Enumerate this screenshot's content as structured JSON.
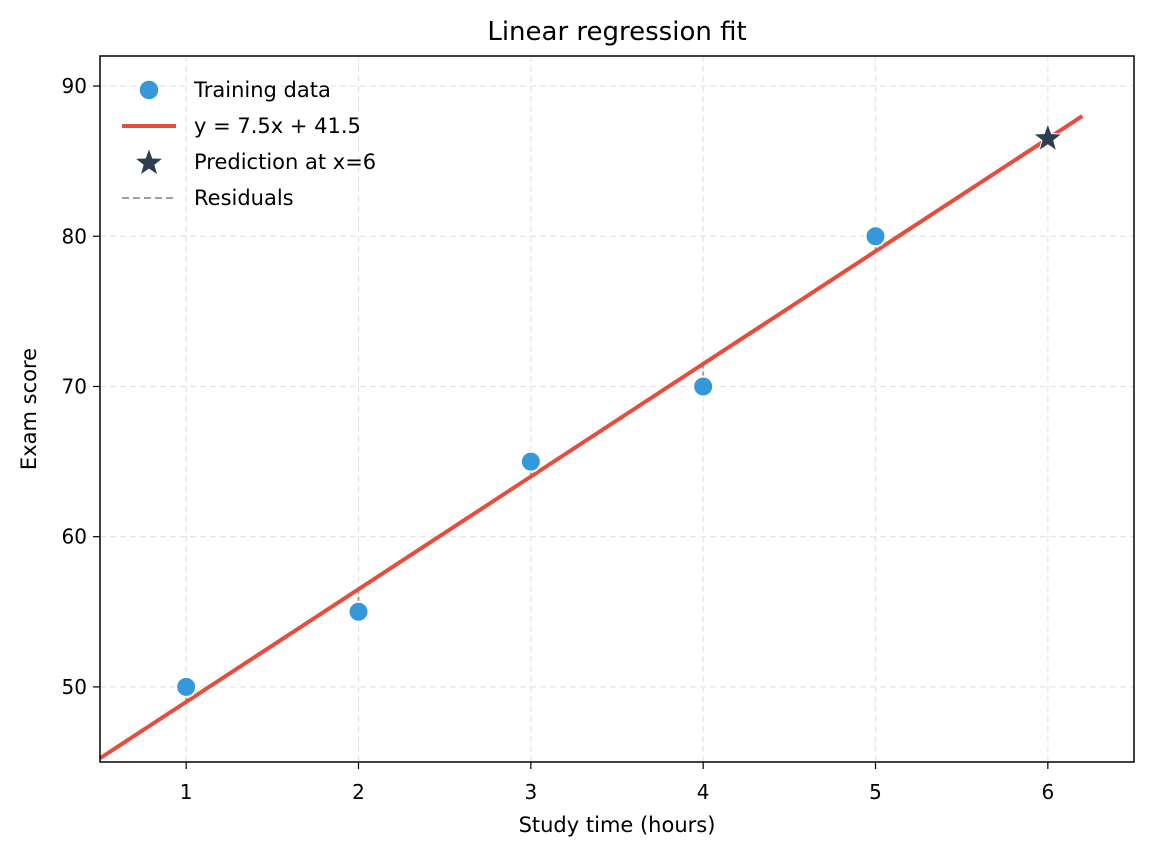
{
  "chart_data": {
    "type": "scatter",
    "title": "Linear regression fit",
    "xlabel": "Study time (hours)",
    "ylabel": "Exam score",
    "xlim": [
      0.5,
      6.5
    ],
    "ylim": [
      45,
      92
    ],
    "xticks": [
      1,
      2,
      3,
      4,
      5,
      6
    ],
    "yticks": [
      50,
      60,
      70,
      80,
      90
    ],
    "grid": true,
    "legend_position": "top-left",
    "series": [
      {
        "name": "Training data",
        "kind": "scatter",
        "color": "#3498db",
        "x": [
          1,
          2,
          3,
          4,
          5
        ],
        "y": [
          50,
          55,
          65,
          70,
          80
        ]
      },
      {
        "name": "y = 7.5x + 41.5",
        "kind": "line",
        "color": "#e74c3c",
        "slope": 7.5,
        "intercept": 41.5,
        "x_range": [
          0.5,
          6.2
        ]
      },
      {
        "name": "Prediction at x=6",
        "kind": "star",
        "color": "#2c3e50",
        "x": [
          6
        ],
        "y": [
          86.5
        ]
      },
      {
        "name": "Residuals",
        "kind": "residual-lines",
        "color": "#95a5a6"
      }
    ]
  }
}
